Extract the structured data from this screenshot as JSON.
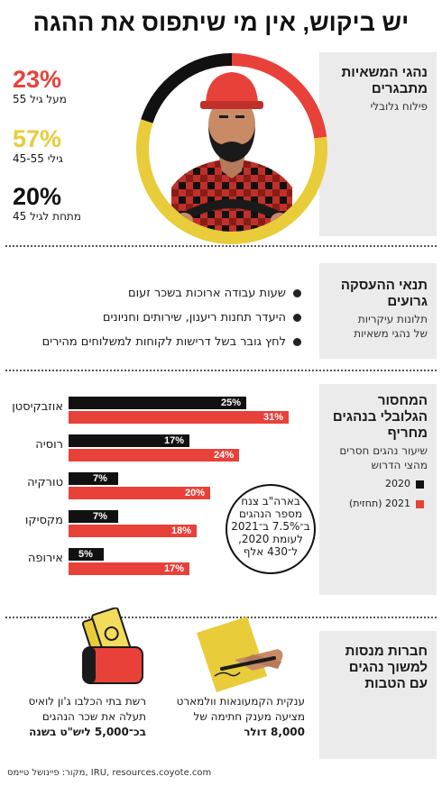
{
  "title": "יש ביקוש, אין מי שיתפוס את ההגה",
  "section1": {
    "heading": "נהגי המשאיות מתבגרים",
    "subheading": "פילוח גלובלי",
    "stats": [
      {
        "pct": "23%",
        "label": "מעל גיל 55",
        "color": "#e8413a",
        "value": 23
      },
      {
        "pct": "57%",
        "label": "גילי 45-55",
        "color": "#e8cc3a",
        "value": 57
      },
      {
        "pct": "20%",
        "label": "מתחת לגיל 45",
        "color": "#111111",
        "value": 20
      }
    ]
  },
  "section2": {
    "heading": "תנאי ההעסקה גרועים",
    "subheading": "תלונות עיקריות של נהגי משאיות",
    "bullets": [
      "שעות עבודה ארוכות בשכר זעום",
      "היעדר תחנות ריענון, שירותים וחניונים",
      "לחץ גובר בשל דרישות לקוחות למשלוחים מהירים"
    ]
  },
  "section3": {
    "heading": "המחסור הגלובלי בנהגים מחריף",
    "subheading": "שיעור נהגים חסרים מהצי הדרוש",
    "legend": [
      {
        "label": "2020",
        "color": "#111111"
      },
      {
        "label": "2021 (תחזית)",
        "color": "#e8413a"
      }
    ],
    "note": "בארה\"ב צנח מספר הנהגים ב־7.5% ב־2021 לעומת 2020, ל־430 אלף"
  },
  "chart_data": {
    "type": "bar",
    "categories": [
      "אוזבקיסטן",
      "רוסיה",
      "טורקיה",
      "מקסיקו",
      "אירופה"
    ],
    "series": [
      {
        "name": "2020",
        "values": [
          25,
          17,
          7,
          7,
          5
        ],
        "labels": [
          "25%",
          "17%",
          "7%",
          "7%",
          "5%"
        ]
      },
      {
        "name": "2021 (תחזית)",
        "values": [
          31,
          24,
          20,
          18,
          17
        ],
        "labels": [
          "31%",
          "24%",
          "20%",
          "18%",
          "17%"
        ]
      }
    ],
    "xlim": [
      0,
      31
    ]
  },
  "section4": {
    "heading": "חברות מנסות למשוך נהגים עם הטבות",
    "caption_left_plain": "רשת בתי הכלבו ג'ון לואיס תעלה את שכר הנהגים",
    "caption_left_bold": "בכ־5,000 ליש\"ט בשנה",
    "caption_right_plain": "ענקית הקמעונאות וולמארט מציעה מענק חתימה של",
    "caption_right_bold": "8,000 דולר"
  },
  "source": "מקור: פיינושל טיימס, IRU, resources.coyote.com"
}
